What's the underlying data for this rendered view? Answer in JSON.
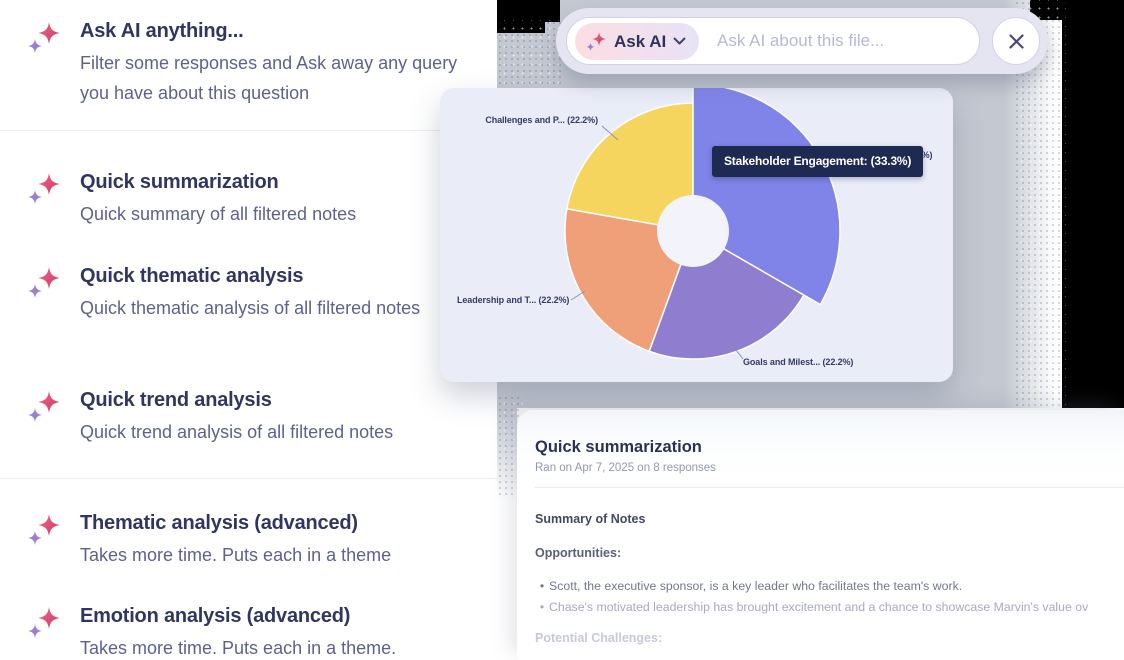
{
  "left_panel": {
    "items": [
      {
        "title": "Ask AI anything...",
        "subtitle": "Filter some responses and Ask away any query you have about this question"
      },
      {
        "title": "Quick summarization",
        "subtitle": "Quick summary of all filtered notes"
      },
      {
        "title": "Quick thematic analysis",
        "subtitle": "Quick thematic analysis of all filtered notes"
      },
      {
        "title": "Quick trend analysis",
        "subtitle": "Quick trend analysis of all filtered notes"
      },
      {
        "title": "Thematic analysis (advanced)",
        "subtitle": "Takes more time. Puts each in a theme"
      },
      {
        "title": "Emotion analysis (advanced)",
        "subtitle": "Takes more time. Puts each in a theme."
      }
    ]
  },
  "ask_ai_bar": {
    "chip_label": "Ask AI",
    "input_placeholder": "Ask AI about this file..."
  },
  "chart_data": {
    "type": "pie",
    "style": "donut",
    "legend_position": "none",
    "slices": [
      {
        "name": "Stakeholder Engagement",
        "value": 33.3,
        "color": "#8084e8",
        "hovered": true
      },
      {
        "name": "Goals and Milest...",
        "value": 22.2,
        "color": "#8f7ed0"
      },
      {
        "name": "Leadership and T...",
        "value": 22.2,
        "color": "#f0a078"
      },
      {
        "name": "Challenges and P...",
        "value": 22.2,
        "color": "#f6d55f"
      }
    ],
    "labels": {
      "challenges": "Challenges and P... (22.2%)",
      "leadership": "Leadership and T... (22.2%)",
      "goals": "Goals and Milest... (22.2%)",
      "stakeholder_truncated": "... (33.3%)"
    },
    "tooltip": "Stakeholder Engagement: (33.3%)",
    "tooltip_bg": "#1e2a52"
  },
  "summary_card": {
    "title": "Quick summarization",
    "meta": "Ran on Apr 7, 2025 on 8 responses",
    "section_heading": "Summary of Notes",
    "subsection_heading": "Opportunities:",
    "bullet_glyph": "•",
    "bullets": [
      "Scott, the executive sponsor, is a key leader who facilitates the team's work.",
      "Chase's motivated leadership has brought excitement and a chance to showcase Marvin's value ov"
    ],
    "faded_heading": "Potential Challenges:"
  }
}
